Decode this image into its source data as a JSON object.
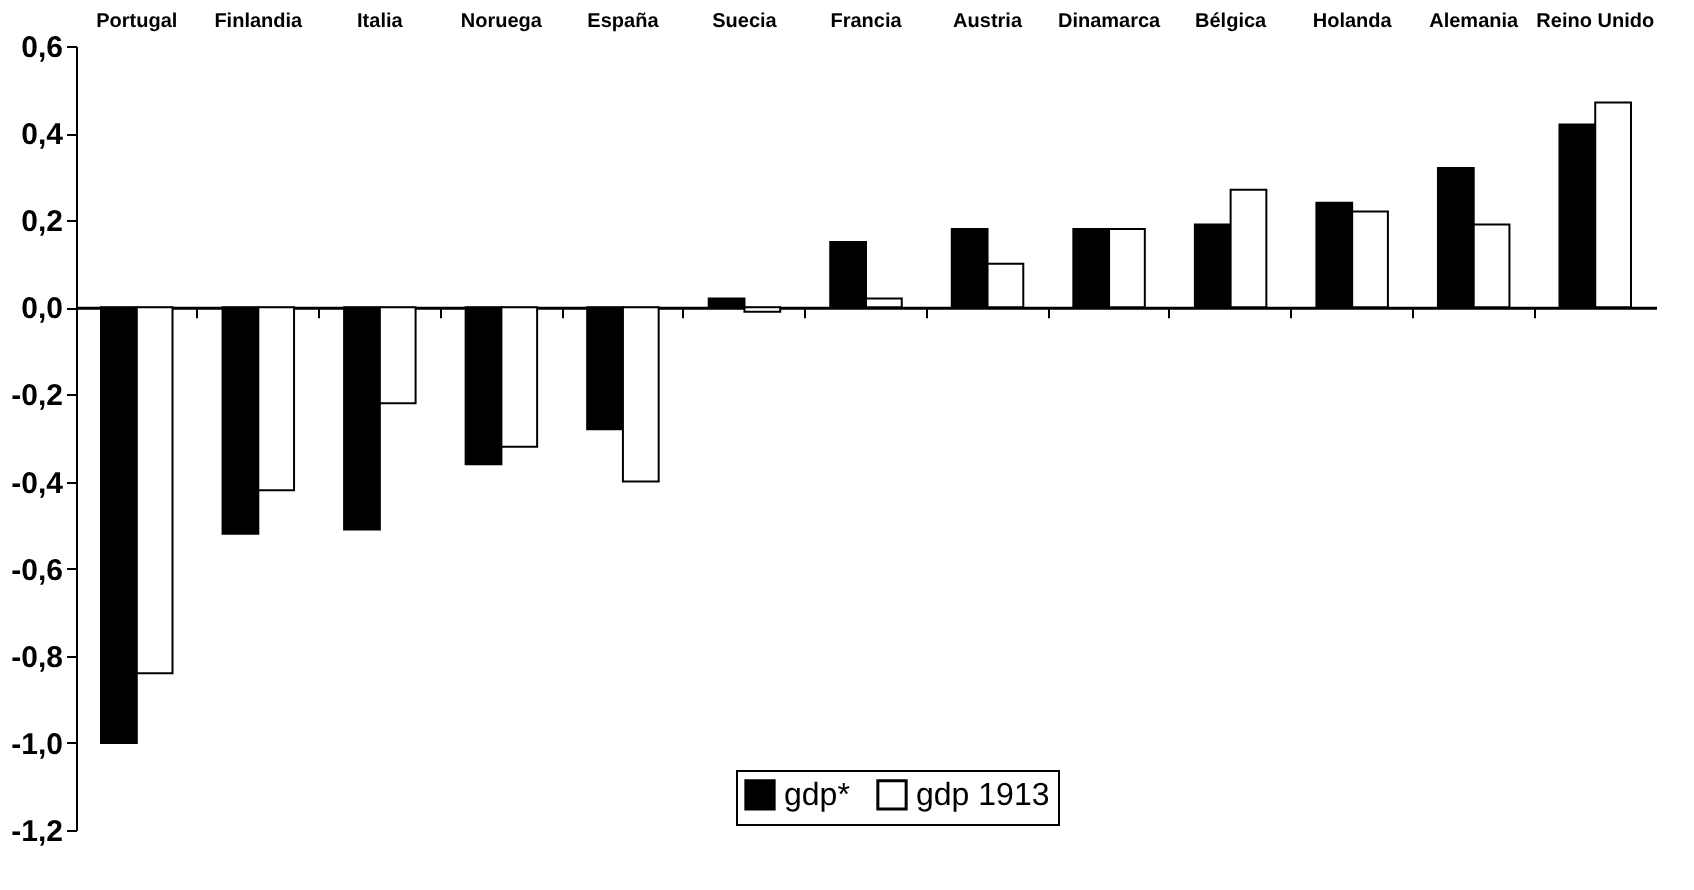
{
  "chart_data": {
    "type": "bar",
    "categories": [
      "Portugal",
      "Finlandia",
      "Italia",
      "Noruega",
      "España",
      "Suecia",
      "Francia",
      "Austria",
      "Dinamarca",
      "Bélgica",
      "Holanda",
      "Alemania",
      "Reino Unido"
    ],
    "series": [
      {
        "name": "gdp*",
        "color": "#000000",
        "values": [
          -1.0,
          -0.52,
          -0.51,
          -0.36,
          -0.28,
          0.02,
          0.15,
          0.18,
          0.18,
          0.19,
          0.24,
          0.32,
          0.42
        ]
      },
      {
        "name": "gdp 1913",
        "color": "#ffffff",
        "values": [
          -0.84,
          -0.42,
          -0.22,
          -0.32,
          -0.4,
          -0.01,
          0.02,
          0.1,
          0.18,
          0.27,
          0.22,
          0.19,
          0.47
        ]
      }
    ],
    "ylim": [
      -1.2,
      0.6
    ],
    "yticks": [
      {
        "value": -1.2,
        "label": "-1,2"
      },
      {
        "value": -1.0,
        "label": "-1,0"
      },
      {
        "value": -0.8,
        "label": "-0,8"
      },
      {
        "value": -0.6,
        "label": "-0,6"
      },
      {
        "value": -0.4,
        "label": "-0,4"
      },
      {
        "value": -0.2,
        "label": "-0,2"
      },
      {
        "value": 0.0,
        "label": "0,0"
      },
      {
        "value": 0.2,
        "label": "0,2"
      },
      {
        "value": 0.4,
        "label": "0,4"
      },
      {
        "value": 0.6,
        "label": "0,6"
      }
    ],
    "ref_lines": [
      {
        "axis": "y",
        "value": 0
      }
    ],
    "legend": "bottom",
    "grid": false
  }
}
